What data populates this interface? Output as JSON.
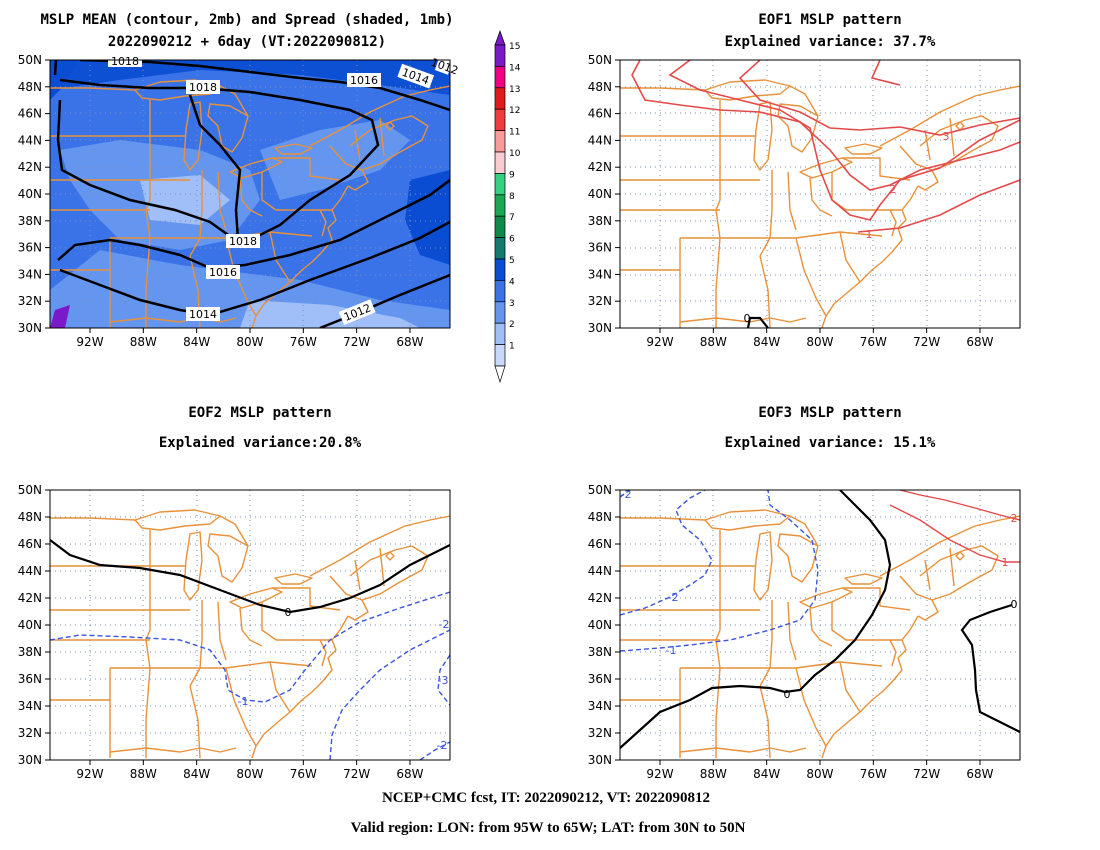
{
  "panels": {
    "p1": {
      "title1": "MSLP MEAN (contour, 2mb) and Spread (shaded, 1mb)",
      "title2": "2022090212 + 6day (VT:2022090812)"
    },
    "p2": {
      "title1": "EOF1 MSLP pattern",
      "title2": "Explained variance: 37.7%"
    },
    "p3": {
      "title1": "EOF2 MSLP pattern",
      "title2": "Explained variance:20.8%"
    },
    "p4": {
      "title1": "EOF3 MSLP pattern",
      "title2": "Explained variance: 15.1%"
    }
  },
  "axes": {
    "lat_labels": [
      "50N",
      "48N",
      "46N",
      "44N",
      "42N",
      "40N",
      "38N",
      "36N",
      "34N",
      "32N",
      "30N"
    ],
    "lon_labels": [
      "92W",
      "88W",
      "84W",
      "80W",
      "76W",
      "72W",
      "68W"
    ]
  },
  "colorbar": {
    "labels": [
      "15",
      "14",
      "13",
      "12",
      "11",
      "10",
      "9",
      "8",
      "7",
      "6",
      "5",
      "4",
      "3",
      "2",
      "1"
    ],
    "colors": [
      "#7b19c8",
      "#f00082",
      "#e11b1b",
      "#f03c3c",
      "#fa9a9a",
      "#faccd2",
      "#33d282",
      "#1aa852",
      "#0e8a48",
      "#127a6e",
      "#0a4cd2",
      "#3a73e8",
      "#6496f0",
      "#a0bef8",
      "#c8d8fa"
    ]
  },
  "panel1": {
    "contours": [
      {
        "label": "1018",
        "pos": "top"
      },
      {
        "label": "1016",
        "pos": "top"
      },
      {
        "label": "1014",
        "pos": "top"
      },
      {
        "label": "1012",
        "pos": "top"
      },
      {
        "label": "1018",
        "pos": "south"
      },
      {
        "label": "1016",
        "pos": "south"
      },
      {
        "label": "1014",
        "pos": "south"
      },
      {
        "label": "1012",
        "pos": "south"
      }
    ]
  },
  "panel2": {
    "labels": [
      {
        "text": "3",
        "color": "#e44a4a"
      },
      {
        "text": "2",
        "color": "#e44a4a"
      },
      {
        "text": "1",
        "color": "#e44a4a"
      },
      {
        "text": "0",
        "color": "#000000"
      }
    ]
  },
  "panel3": {
    "labels": [
      {
        "text": "0",
        "color": "#000000"
      },
      {
        "text": "-2",
        "color": "#3a55e0"
      },
      {
        "text": "-1",
        "color": "#3a55e0"
      },
      {
        "text": "-3",
        "color": "#3a55e0"
      },
      {
        "text": "-2",
        "color": "#3a55e0"
      }
    ]
  },
  "panel4": {
    "labels": [
      {
        "text": "-2",
        "color": "#3a55e0"
      },
      {
        "text": "-2",
        "color": "#3a55e0"
      },
      {
        "text": "-1",
        "color": "#3a55e0"
      },
      {
        "text": "0",
        "color": "#000000"
      },
      {
        "text": "2",
        "color": "#e44a4a"
      },
      {
        "text": "1",
        "color": "#e44a4a"
      },
      {
        "text": "0",
        "color": "#000000"
      }
    ]
  },
  "footer": {
    "line1": "NCEP+CMC fcst, IT: 2022090212, VT: 2022090812",
    "line2": "Valid region: LON: from 95W to 65W; LAT: from 30N to 50N"
  }
}
